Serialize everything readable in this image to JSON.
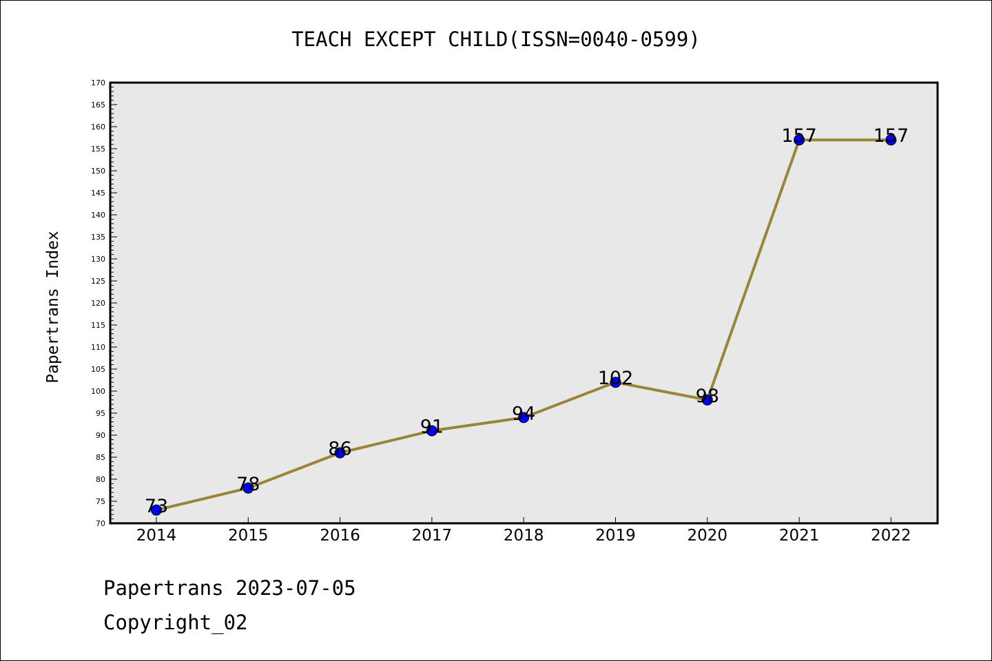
{
  "chart_data": {
    "type": "line",
    "title": "TEACH EXCEPT CHILD(ISSN=0040-0599)",
    "xlabel": "",
    "ylabel": "Papertrans Index",
    "categories": [
      "2014",
      "2015",
      "2016",
      "2017",
      "2018",
      "2019",
      "2020",
      "2021",
      "2022"
    ],
    "values": [
      73,
      78,
      86,
      91,
      94,
      102,
      98,
      157,
      157
    ],
    "ylim": [
      70,
      170
    ],
    "ytick_step": 5,
    "grid": false,
    "plot_background": "#e8e8e8",
    "line_color": "#998535",
    "marker_color": "#0000ff",
    "data_labels": [
      "73",
      "78",
      "86",
      "91",
      "94",
      "102",
      "98",
      "157",
      "157"
    ]
  },
  "footer": {
    "line1": "Papertrans 2023-07-05",
    "line2": "Copyright_02"
  }
}
